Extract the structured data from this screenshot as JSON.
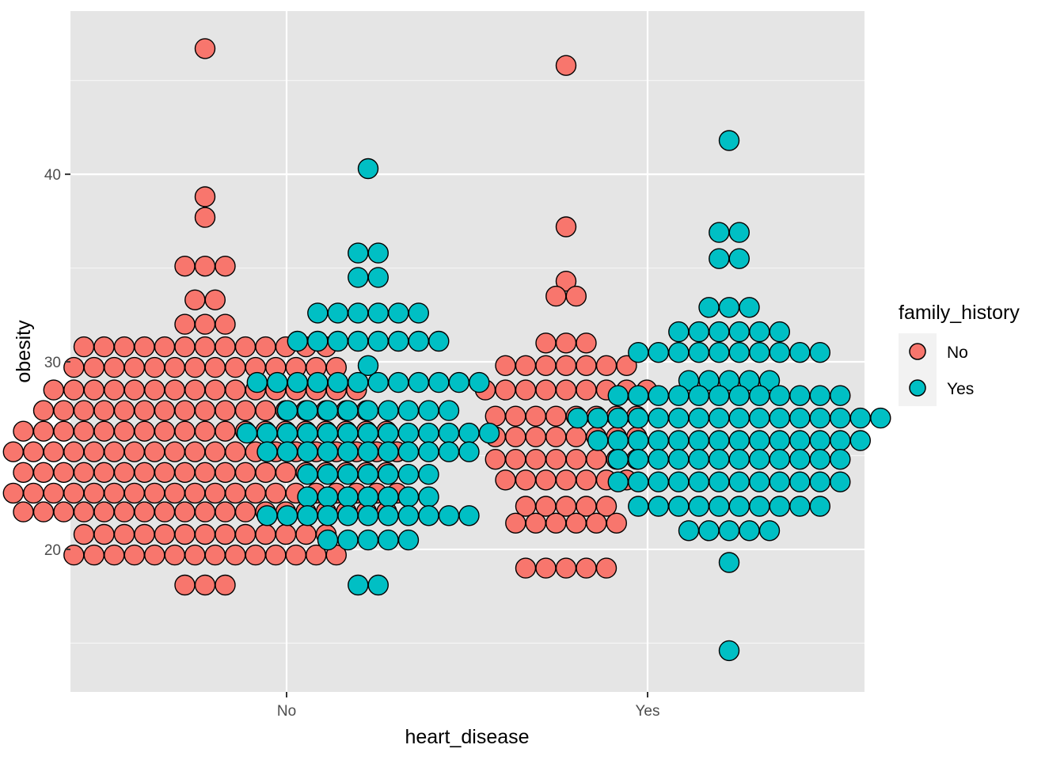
{
  "chart_data": {
    "type": "scatter",
    "subtype": "dotplot",
    "xlabel": "heart_disease",
    "ylabel": "obesity",
    "categories": [
      "No",
      "Yes"
    ],
    "ylim": [
      12.4,
      48.7
    ],
    "yticks": [
      20,
      30,
      40
    ],
    "grid": true,
    "colors": {
      "No": "#F8766D",
      "Yes": "#00BFC4",
      "panel": "#E5E5E5",
      "grid": "#FFFFFF"
    },
    "legend": {
      "title": "family_history",
      "position": "right",
      "entries": [
        "No",
        "Yes"
      ]
    },
    "series": [
      {
        "name": "No",
        "bins": [
          {
            "x": "No",
            "rows": [
              {
                "y": 46.7,
                "n": 1
              },
              {
                "y": 38.8,
                "n": 1
              },
              {
                "y": 37.7,
                "n": 1
              },
              {
                "y": 35.1,
                "n": 3
              },
              {
                "y": 33.3,
                "n": 2
              },
              {
                "y": 32.0,
                "n": 3
              },
              {
                "y": 30.8,
                "n": 13
              },
              {
                "y": 29.7,
                "n": 14
              },
              {
                "y": 28.5,
                "n": 16
              },
              {
                "y": 27.4,
                "n": 17
              },
              {
                "y": 26.3,
                "n": 19
              },
              {
                "y": 25.2,
                "n": 20
              },
              {
                "y": 24.1,
                "n": 19
              },
              {
                "y": 23.0,
                "n": 20
              },
              {
                "y": 22.0,
                "n": 19
              },
              {
                "y": 20.8,
                "n": 13
              },
              {
                "y": 19.7,
                "n": 14
              },
              {
                "y": 18.1,
                "n": 3
              }
            ]
          },
          {
            "x": "Yes",
            "rows": [
              {
                "y": 45.8,
                "n": 1
              },
              {
                "y": 37.2,
                "n": 1
              },
              {
                "y": 34.3,
                "n": 1
              },
              {
                "y": 33.5,
                "n": 2
              },
              {
                "y": 31.0,
                "n": 3
              },
              {
                "y": 29.8,
                "n": 7
              },
              {
                "y": 28.5,
                "n": 9
              },
              {
                "y": 27.1,
                "n": 8
              },
              {
                "y": 26.0,
                "n": 8
              },
              {
                "y": 24.8,
                "n": 8
              },
              {
                "y": 23.7,
                "n": 7
              },
              {
                "y": 22.3,
                "n": 5
              },
              {
                "y": 21.4,
                "n": 6
              },
              {
                "y": 19.0,
                "n": 5
              }
            ]
          }
        ]
      },
      {
        "name": "Yes",
        "bins": [
          {
            "x": "No",
            "rows": [
              {
                "y": 40.3,
                "n": 1
              },
              {
                "y": 35.8,
                "n": 2
              },
              {
                "y": 34.5,
                "n": 2
              },
              {
                "y": 32.6,
                "n": 6
              },
              {
                "y": 31.1,
                "n": 8
              },
              {
                "y": 29.8,
                "n": 1
              },
              {
                "y": 28.9,
                "n": 12
              },
              {
                "y": 27.4,
                "n": 9
              },
              {
                "y": 26.2,
                "n": 13
              },
              {
                "y": 25.2,
                "n": 11
              },
              {
                "y": 24.0,
                "n": 7
              },
              {
                "y": 22.8,
                "n": 7
              },
              {
                "y": 21.8,
                "n": 11
              },
              {
                "y": 20.5,
                "n": 5
              },
              {
                "y": 18.1,
                "n": 2
              }
            ]
          },
          {
            "x": "Yes",
            "rows": [
              {
                "y": 41.8,
                "n": 1
              },
              {
                "y": 36.9,
                "n": 2
              },
              {
                "y": 35.5,
                "n": 2
              },
              {
                "y": 32.9,
                "n": 3
              },
              {
                "y": 31.6,
                "n": 6
              },
              {
                "y": 30.5,
                "n": 10
              },
              {
                "y": 29.0,
                "n": 5
              },
              {
                "y": 28.2,
                "n": 12
              },
              {
                "y": 27.0,
                "n": 16
              },
              {
                "y": 25.8,
                "n": 14
              },
              {
                "y": 24.8,
                "n": 12
              },
              {
                "y": 23.6,
                "n": 12
              },
              {
                "y": 22.3,
                "n": 10
              },
              {
                "y": 21.0,
                "n": 5
              },
              {
                "y": 19.3,
                "n": 1
              },
              {
                "y": 14.6,
                "n": 1
              }
            ]
          }
        ]
      }
    ]
  }
}
